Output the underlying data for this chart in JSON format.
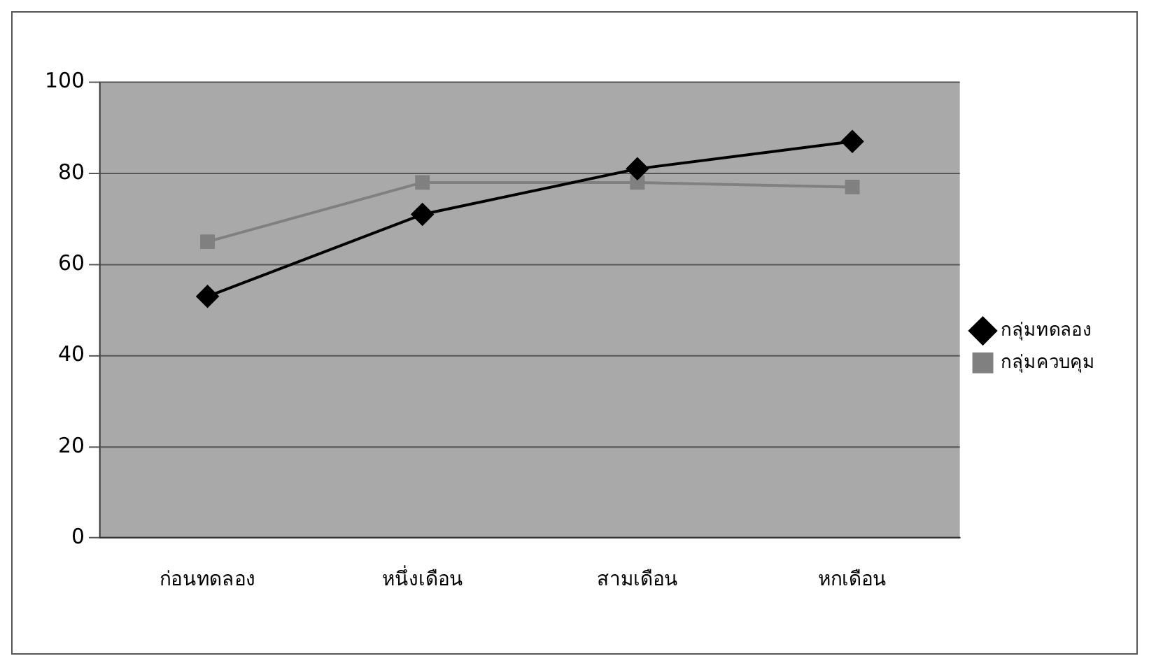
{
  "chart_data": {
    "type": "line",
    "categories": [
      "ก่อนทดลอง",
      "หนึ่งเดือน",
      "สามเดือน",
      "หกเดือน"
    ],
    "series": [
      {
        "name": "กลุ่มทดลอง",
        "color": "#000000",
        "marker": "diamond",
        "values": [
          53,
          71,
          81,
          87
        ]
      },
      {
        "name": "กลุ่มควบคุม",
        "color": "#808080",
        "marker": "square",
        "values": [
          65,
          78,
          78,
          77
        ]
      }
    ],
    "ylim": [
      0,
      100
    ],
    "yticks": [
      0,
      20,
      40,
      60,
      80,
      100
    ],
    "grid": "y",
    "legend": "right"
  }
}
